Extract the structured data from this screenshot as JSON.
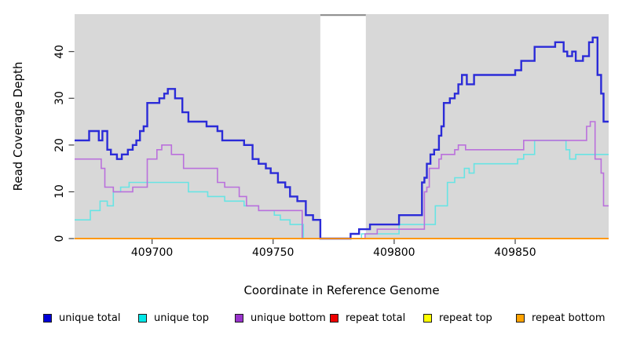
{
  "chart_data": {
    "type": "line",
    "subtype": "step",
    "title": "",
    "xlabel": "Coordinate in Reference Genome",
    "ylabel": "Read Coverage Depth",
    "xlim": [
      409668,
      409888.6
    ],
    "ylim": [
      0,
      48
    ],
    "x_ticks": [
      409700,
      409750,
      409800,
      409850
    ],
    "x_tick_labels": [
      "409700",
      "409750",
      "409800",
      "409850"
    ],
    "y_ticks": [
      0,
      10,
      20,
      30,
      40
    ],
    "y_tick_labels": [
      "0",
      "10",
      "20",
      "30",
      "40"
    ],
    "grid": false,
    "legend_position": "bottom",
    "plot_background": "#d8d8d8",
    "missing_data_region": {
      "from": 409769.5,
      "to": 409788.3
    },
    "series": [
      {
        "name": "unique total",
        "color": "#2b2bd8",
        "line_width": 2.4,
        "points": [
          [
            409668,
            21
          ],
          [
            409674,
            23
          ],
          [
            409678,
            21
          ],
          [
            409679.5,
            23
          ],
          [
            409681.5,
            19
          ],
          [
            409683,
            18
          ],
          [
            409685.5,
            17
          ],
          [
            409687.5,
            18
          ],
          [
            409690,
            19
          ],
          [
            409692,
            20
          ],
          [
            409693.5,
            21
          ],
          [
            409695,
            23
          ],
          [
            409696.5,
            24
          ],
          [
            409698,
            29
          ],
          [
            409703,
            30
          ],
          [
            409705,
            31
          ],
          [
            409706.5,
            32
          ],
          [
            409709.5,
            30
          ],
          [
            409712.5,
            27
          ],
          [
            409715,
            25
          ],
          [
            409722.5,
            24
          ],
          [
            409727,
            23
          ],
          [
            409729,
            21
          ],
          [
            409738,
            20
          ],
          [
            409741.5,
            17
          ],
          [
            409744,
            16
          ],
          [
            409747,
            15
          ],
          [
            409749,
            14
          ],
          [
            409752,
            12
          ],
          [
            409755,
            11
          ],
          [
            409757,
            9
          ],
          [
            409760,
            8
          ],
          [
            409763.5,
            5
          ],
          [
            409766.5,
            4
          ],
          [
            409769.5,
            0
          ],
          [
            409782,
            1
          ],
          [
            409785.5,
            2
          ],
          [
            409790,
            3
          ],
          [
            409802,
            5
          ],
          [
            409811.5,
            12
          ],
          [
            409812.5,
            13
          ],
          [
            409813.5,
            16
          ],
          [
            409815,
            18
          ],
          [
            409816.5,
            19
          ],
          [
            409818.5,
            22
          ],
          [
            409819.5,
            24
          ],
          [
            409820.5,
            29
          ],
          [
            409823,
            30
          ],
          [
            409825,
            31
          ],
          [
            409826.5,
            33
          ],
          [
            409828,
            35
          ],
          [
            409830,
            33
          ],
          [
            409833,
            35
          ],
          [
            409850,
            36
          ],
          [
            409852.5,
            38
          ],
          [
            409858,
            41
          ],
          [
            409866.5,
            42
          ],
          [
            409870,
            40
          ],
          [
            409871.5,
            39
          ],
          [
            409873.5,
            40
          ],
          [
            409875,
            38
          ],
          [
            409878,
            39
          ],
          [
            409880.5,
            42
          ],
          [
            409882,
            43
          ],
          [
            409884,
            35
          ],
          [
            409885.5,
            31
          ],
          [
            409886.5,
            25
          ]
        ]
      },
      {
        "name": "unique top",
        "color": "#68e4e4",
        "line_width": 1.6,
        "points": [
          [
            409668,
            4
          ],
          [
            409674.5,
            6
          ],
          [
            409678.5,
            8
          ],
          [
            409681.5,
            7
          ],
          [
            409684,
            10
          ],
          [
            409687,
            11
          ],
          [
            409690.5,
            12
          ],
          [
            409715,
            10
          ],
          [
            409723,
            9
          ],
          [
            409730,
            8
          ],
          [
            409738,
            7
          ],
          [
            409744,
            6
          ],
          [
            409750.5,
            5
          ],
          [
            409753,
            4
          ],
          [
            409757,
            3
          ],
          [
            409762.5,
            0
          ],
          [
            409786.5,
            1
          ],
          [
            409802,
            3
          ],
          [
            409817,
            7
          ],
          [
            409822,
            12
          ],
          [
            409825,
            13
          ],
          [
            409829,
            15
          ],
          [
            409831,
            14
          ],
          [
            409833,
            16
          ],
          [
            409851,
            17
          ],
          [
            409853.5,
            18
          ],
          [
            409858,
            21
          ],
          [
            409871,
            19
          ],
          [
            409872.5,
            17
          ],
          [
            409875,
            18
          ]
        ]
      },
      {
        "name": "unique bottom",
        "color": "#ba70dc",
        "line_width": 1.6,
        "points": [
          [
            409668,
            17
          ],
          [
            409679,
            15
          ],
          [
            409680.5,
            11
          ],
          [
            409684,
            10
          ],
          [
            409692,
            11
          ],
          [
            409698,
            17
          ],
          [
            409702,
            19
          ],
          [
            409704,
            20
          ],
          [
            409708,
            18
          ],
          [
            409713,
            15
          ],
          [
            409727,
            12
          ],
          [
            409730,
            11
          ],
          [
            409736,
            9
          ],
          [
            409739,
            7
          ],
          [
            409744,
            6
          ],
          [
            409762,
            0
          ],
          [
            409788,
            1
          ],
          [
            409793,
            2
          ],
          [
            409812.5,
            10
          ],
          [
            409813.5,
            11
          ],
          [
            409814.5,
            15
          ],
          [
            409818.5,
            17
          ],
          [
            409819.5,
            18
          ],
          [
            409825,
            19
          ],
          [
            409826.5,
            20
          ],
          [
            409829.5,
            19
          ],
          [
            409853.5,
            21
          ],
          [
            409879.5,
            24
          ],
          [
            409881,
            25
          ],
          [
            409883,
            17
          ],
          [
            409885.5,
            14
          ],
          [
            409886.5,
            7
          ]
        ]
      },
      {
        "name": "repeat total",
        "color": "#e00000",
        "line_width": 1.6,
        "points": [
          [
            409668,
            0
          ]
        ]
      },
      {
        "name": "repeat top",
        "color": "#ffff00",
        "line_width": 1.6,
        "points": [
          [
            409668,
            0
          ]
        ]
      },
      {
        "name": "repeat bottom",
        "color": "#ff9305",
        "line_width": 1.8,
        "points": [
          [
            409668,
            0
          ]
        ]
      }
    ]
  },
  "legend": {
    "items": [
      {
        "label": "unique total",
        "color": "#0000d8"
      },
      {
        "label": "unique top",
        "color": "#00e8e8"
      },
      {
        "label": "unique bottom",
        "color": "#9933cc"
      },
      {
        "label": "repeat total",
        "color": "#ee0000"
      },
      {
        "label": "repeat top",
        "color": "#ffff00"
      },
      {
        "label": "repeat bottom",
        "color": "#ffa200"
      }
    ]
  }
}
